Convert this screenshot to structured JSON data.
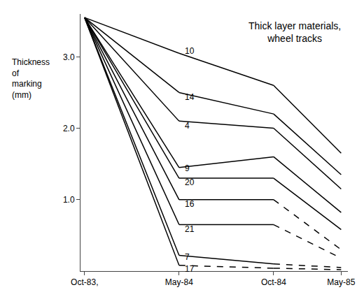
{
  "chart_data": {
    "type": "line",
    "title": "Thick layer materials,\nwheel tracks",
    "ylabel": "Thickness\nof\nmarking\n(mm)",
    "xlim": [
      -0.3,
      19.5
    ],
    "xticks": [
      {
        "value": 0,
        "label": "Oct-83,"
      },
      {
        "value": 7,
        "label": "May-84"
      },
      {
        "value": 14,
        "label": "Oct-84"
      },
      {
        "value": 19,
        "label": "May-85"
      }
    ],
    "ylim": [
      0,
      3.6
    ],
    "yticks": [
      {
        "value": 1.0,
        "label": "1.0"
      },
      {
        "value": 2.0,
        "label": "2.0"
      },
      {
        "value": 3.0,
        "label": "3.0"
      }
    ],
    "grid": false,
    "color": "#000000",
    "series": [
      {
        "name": "10",
        "label_x": 7.3,
        "label_y": 3.08,
        "segments": [
          {
            "x": [
              0,
              7
            ],
            "values": [
              3.55,
              3.05
            ],
            "line_style": "solid"
          },
          {
            "x": [
              7,
              14
            ],
            "values": [
              3.05,
              2.6
            ],
            "line_style": "solid"
          },
          {
            "x": [
              14,
              19
            ],
            "values": [
              2.6,
              1.65
            ],
            "line_style": "solid"
          }
        ]
      },
      {
        "name": "14",
        "label_x": 7.3,
        "label_y": 2.44,
        "segments": [
          {
            "x": [
              0,
              7
            ],
            "values": [
              3.55,
              2.5
            ],
            "line_style": "solid"
          },
          {
            "x": [
              7,
              14
            ],
            "values": [
              2.5,
              2.2
            ],
            "line_style": "solid"
          },
          {
            "x": [
              14,
              19
            ],
            "values": [
              2.2,
              1.35
            ],
            "line_style": "solid"
          }
        ]
      },
      {
        "name": "4",
        "label_x": 7.3,
        "label_y": 2.03,
        "segments": [
          {
            "x": [
              0,
              7
            ],
            "values": [
              3.55,
              2.1
            ],
            "line_style": "solid"
          },
          {
            "x": [
              7,
              14
            ],
            "values": [
              2.1,
              2.0
            ],
            "line_style": "solid"
          },
          {
            "x": [
              14,
              19
            ],
            "values": [
              2.0,
              1.15
            ],
            "line_style": "solid"
          }
        ]
      },
      {
        "name": "9",
        "label_x": 7.3,
        "label_y": 1.44,
        "segments": [
          {
            "x": [
              0,
              7
            ],
            "values": [
              3.55,
              1.45
            ],
            "line_style": "solid"
          },
          {
            "x": [
              7,
              14
            ],
            "values": [
              1.45,
              1.6
            ],
            "line_style": "solid"
          },
          {
            "x": [
              14,
              19
            ],
            "values": [
              1.6,
              0.82
            ],
            "line_style": "solid"
          }
        ]
      },
      {
        "name": "20",
        "label_x": 7.3,
        "label_y": 1.24,
        "segments": [
          {
            "x": [
              0,
              7
            ],
            "values": [
              3.55,
              1.3
            ],
            "line_style": "solid"
          },
          {
            "x": [
              7,
              14
            ],
            "values": [
              1.3,
              1.3
            ],
            "line_style": "solid"
          },
          {
            "x": [
              14,
              19
            ],
            "values": [
              1.3,
              0.58
            ],
            "line_style": "solid"
          }
        ]
      },
      {
        "name": "16",
        "label_x": 7.3,
        "label_y": 0.94,
        "segments": [
          {
            "x": [
              0,
              7
            ],
            "values": [
              3.55,
              1.0
            ],
            "line_style": "solid"
          },
          {
            "x": [
              7,
              14
            ],
            "values": [
              1.0,
              1.0
            ],
            "line_style": "solid"
          },
          {
            "x": [
              14,
              19
            ],
            "values": [
              1.0,
              0.3
            ],
            "line_style": "dashed"
          }
        ]
      },
      {
        "name": "21",
        "label_x": 7.3,
        "label_y": 0.59,
        "segments": [
          {
            "x": [
              0,
              7
            ],
            "values": [
              3.55,
              0.65
            ],
            "line_style": "solid"
          },
          {
            "x": [
              7,
              14
            ],
            "values": [
              0.65,
              0.65
            ],
            "line_style": "solid"
          },
          {
            "x": [
              14,
              19
            ],
            "values": [
              0.65,
              0.18
            ],
            "line_style": "dashed"
          }
        ]
      },
      {
        "name": "7",
        "label_x": 7.3,
        "label_y": 0.2,
        "segments": [
          {
            "x": [
              0,
              7
            ],
            "values": [
              3.55,
              0.22
            ],
            "line_style": "solid"
          },
          {
            "x": [
              7,
              14
            ],
            "values": [
              0.22,
              0.1
            ],
            "line_style": "solid"
          },
          {
            "x": [
              14,
              19
            ],
            "values": [
              0.1,
              0.05
            ],
            "line_style": "dashed"
          }
        ]
      },
      {
        "name": "17",
        "label_x": 7.3,
        "label_y": 0.03,
        "segments": [
          {
            "x": [
              0,
              7
            ],
            "values": [
              3.55,
              0.08
            ],
            "line_style": "solid"
          },
          {
            "x": [
              7,
              14
            ],
            "values": [
              0.08,
              0.04
            ],
            "line_style": "dashed"
          },
          {
            "x": [
              14,
              19
            ],
            "values": [
              0.04,
              0.02
            ],
            "line_style": "dashed"
          }
        ]
      }
    ]
  }
}
